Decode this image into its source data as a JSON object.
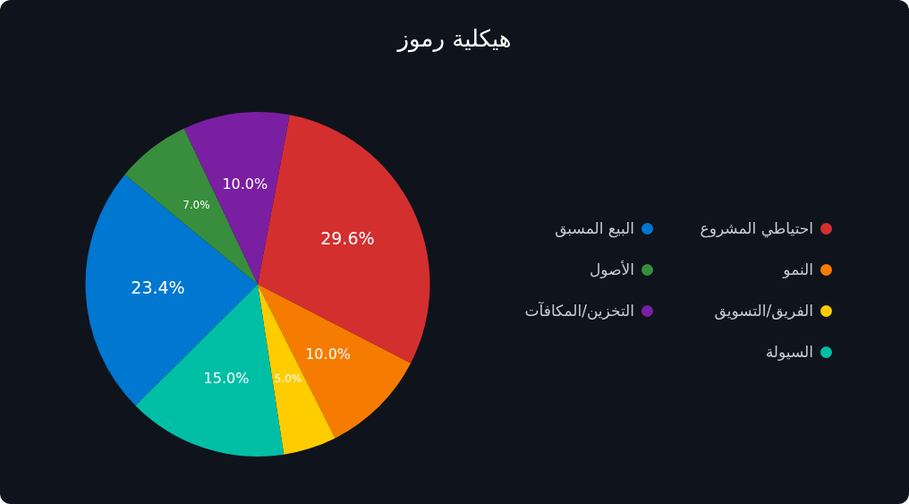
{
  "chart_data": {
    "type": "pie",
    "title": "هيكلية رموز",
    "categories": [
      "احتياطي المشروع",
      "النمو",
      "الفريق/التسويق",
      "السيولة",
      "البيع المسبق",
      "الأصول",
      "التخزين/المكافآت"
    ],
    "values": [
      29.6,
      10.0,
      5.0,
      15.0,
      23.4,
      7.0,
      10.0
    ],
    "colors": [
      "#d32f2f",
      "#f57c00",
      "#ffcc00",
      "#00bfa5",
      "#0077d0",
      "#388e3c",
      "#7b1fa2"
    ],
    "value_labels": [
      "29.6%",
      "10.0%",
      "5.0%",
      "15.0%",
      "23.4%",
      "7.0%",
      "10.0%"
    ],
    "legend": "right"
  }
}
